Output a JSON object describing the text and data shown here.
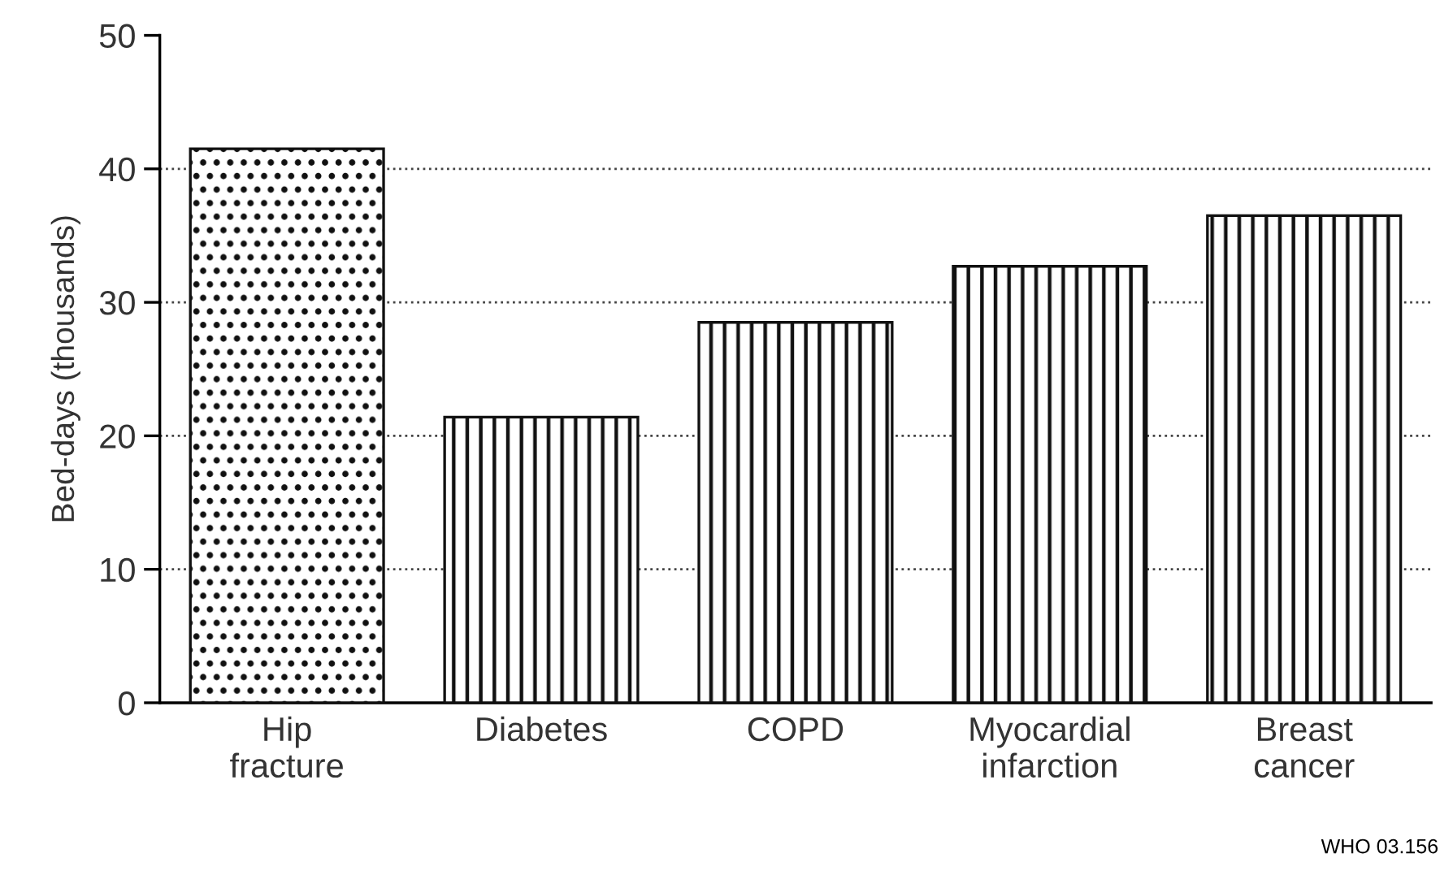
{
  "chart_data": {
    "type": "bar",
    "ylabel": "Bed-days (thousands)",
    "categories": [
      "Hip\nfracture",
      "Diabetes",
      "COPD",
      "Myocardial\ninfarction",
      "Breast\ncancer"
    ],
    "values": [
      41.5,
      21.4,
      28.5,
      32.7,
      36.5
    ],
    "color": "#111111",
    "ylim": [
      0,
      50
    ],
    "yticks": [
      0,
      10,
      20,
      30,
      40,
      50
    ],
    "grid": "y",
    "line_style": "dotted",
    "annotations": [
      "WHO 03.156"
    ]
  }
}
